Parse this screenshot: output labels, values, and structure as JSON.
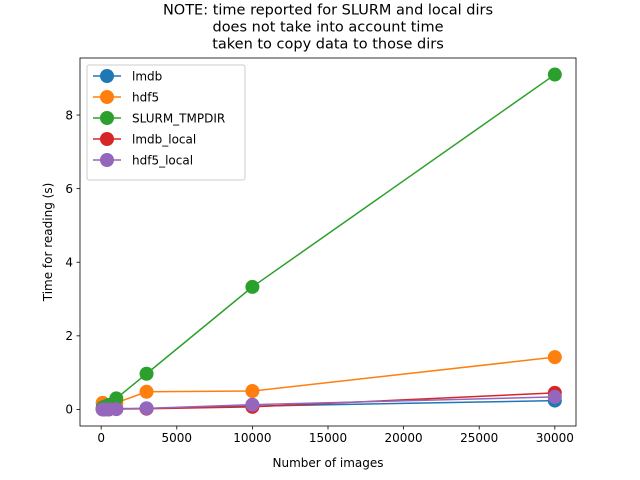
{
  "chart_data": {
    "type": "line",
    "title_lines": [
      "NOTE: time reported for SLURM and local dirs",
      "does not take into account time",
      "taken to copy data to those dirs"
    ],
    "xlabel": "Number of images",
    "ylabel": "Time for reading (s)",
    "x": [
      100,
      250,
      500,
      1000,
      3000,
      10000,
      30000
    ],
    "xlim": [
      -1400,
      31400
    ],
    "ylim": [
      -0.45,
      9.55
    ],
    "xticks": [
      0,
      5000,
      10000,
      15000,
      20000,
      25000,
      30000
    ],
    "yticks": [
      0,
      2,
      4,
      6,
      8
    ],
    "grid": false,
    "legend_position": "top-left",
    "series": [
      {
        "name": "lmdb",
        "color": "#1f77b4",
        "values": [
          0.01,
          0.01,
          0.01,
          0.02,
          0.03,
          0.09,
          0.24
        ]
      },
      {
        "name": "hdf5",
        "color": "#ff7f0e",
        "values": [
          0.18,
          0.12,
          0.12,
          0.18,
          0.48,
          0.5,
          1.42
        ]
      },
      {
        "name": "SLURM_TMPDIR",
        "color": "#2ca02c",
        "values": [
          0.05,
          0.08,
          0.12,
          0.3,
          0.97,
          3.33,
          9.1
        ]
      },
      {
        "name": "lmdb_local",
        "color": "#d62728",
        "values": [
          0.0,
          0.0,
          0.0,
          0.01,
          0.02,
          0.07,
          0.45
        ]
      },
      {
        "name": "hdf5_local",
        "color": "#9467bd",
        "values": [
          0.0,
          0.0,
          0.0,
          0.01,
          0.03,
          0.13,
          0.34
        ]
      }
    ]
  }
}
